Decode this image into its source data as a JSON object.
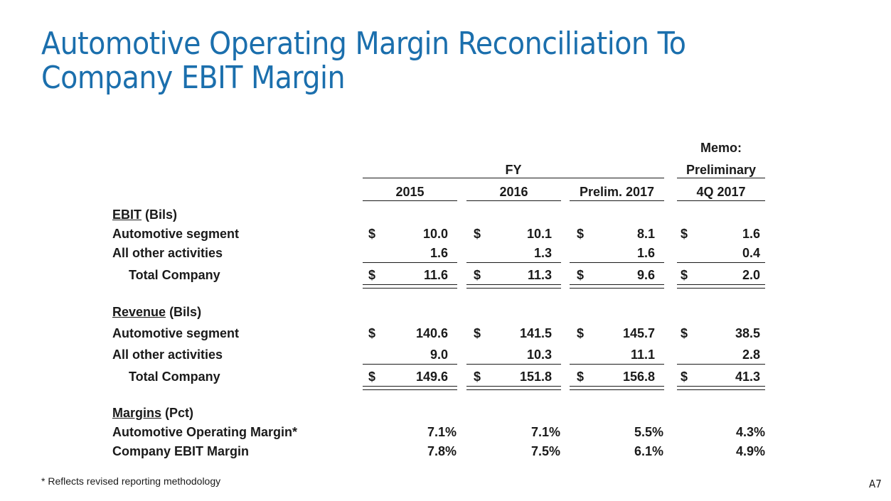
{
  "title": {
    "line1": "Automotive Operating Margin Reconciliation To",
    "line2": "Company EBIT Margin"
  },
  "header": {
    "fy_label": "FY",
    "memo_label": "Memo:",
    "preliminary_label": "Preliminary",
    "columns": [
      "2015",
      "2016",
      "Prelim. 2017",
      "4Q 2017"
    ]
  },
  "sections": {
    "ebit": {
      "heading": "EBIT",
      "unit": "(Bils)",
      "auto_label": "Automotive segment",
      "auto_values": [
        "10.0",
        "10.1",
        "8.1",
        "1.6"
      ],
      "other_label": "All other activities",
      "other_values": [
        "1.6",
        "1.3",
        "1.6",
        "0.4"
      ],
      "total_label": "Total Company",
      "total_values": [
        "11.6",
        "11.3",
        "9.6",
        "2.0"
      ]
    },
    "revenue": {
      "heading": "Revenue",
      "unit": "(Bils)",
      "auto_label": "Automotive segment",
      "auto_values": [
        "140.6",
        "141.5",
        "145.7",
        "38.5"
      ],
      "other_label": "All other activities",
      "other_values": [
        "9.0",
        "10.3",
        "11.1",
        "2.8"
      ],
      "total_label": "Total Company",
      "total_values": [
        "149.6",
        "151.8",
        "156.8",
        "41.3"
      ]
    },
    "margins": {
      "heading": "Margins",
      "unit": "(Pct)",
      "aom_label": "Automotive Operating Margin*",
      "aom_values": [
        "7.1%",
        "7.1%",
        "5.5%",
        "4.3%"
      ],
      "ebit_label": "Company EBIT Margin",
      "ebit_values": [
        "7.8%",
        "7.5%",
        "6.1%",
        "4.9%"
      ]
    }
  },
  "currency_symbol": "$",
  "footnote": "*  Reflects revised reporting methodology",
  "page_number": "A7",
  "colors": {
    "title": "#1b6fad",
    "text": "#1a1a1a"
  }
}
